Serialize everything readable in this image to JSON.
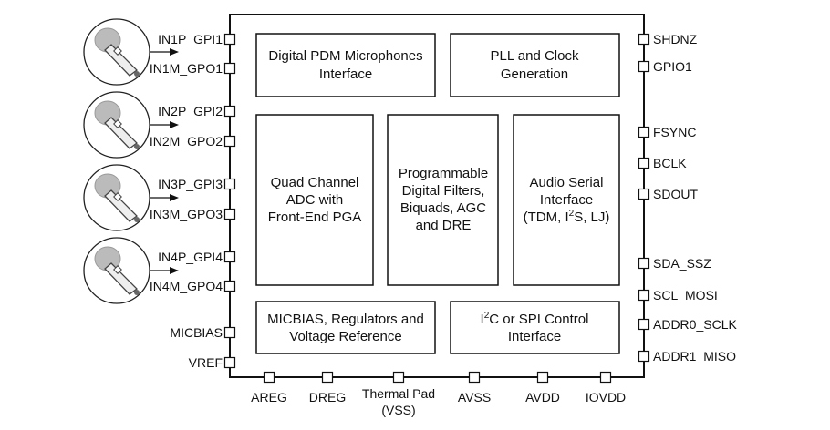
{
  "blocks": {
    "pdm": [
      "Digital PDM Microphones",
      "Interface"
    ],
    "pll": [
      "PLL and Clock",
      "Generation"
    ],
    "adc": [
      "Quad Channel",
      "ADC with",
      "Front-End PGA"
    ],
    "filters": [
      "Programmable",
      "Digital Filters,",
      "Biquads, AGC",
      "and DRE"
    ],
    "asi": [
      "Audio Serial",
      "Interface",
      "(TDM, I",
      "2",
      "S, LJ)"
    ],
    "micbias": [
      "MICBIAS, Regulators and",
      "Voltage Reference"
    ],
    "control": [
      "I",
      "2",
      "C or SPI Control",
      "Interface"
    ]
  },
  "left_pins": [
    "IN1P_GPI1",
    "IN1M_GPO1",
    "IN2P_GPI2",
    "IN2M_GPO2",
    "IN3P_GPI3",
    "IN3M_GPO3",
    "IN4P_GPI4",
    "IN4M_GPO4",
    "MICBIAS",
    "VREF"
  ],
  "right_pins": [
    "SHDNZ",
    "GPIO1",
    "FSYNC",
    "BCLK",
    "SDOUT",
    "SDA_SSZ",
    "SCL_MOSI",
    "ADDR0_SCLK",
    "ADDR1_MISO"
  ],
  "bottom_pins": [
    "AREG",
    "DREG",
    "Thermal Pad",
    "(VSS)",
    "AVSS",
    "AVDD",
    "IOVDD"
  ],
  "icons": [
    "microphone-icon",
    "microphone-icon",
    "microphone-icon",
    "microphone-icon"
  ]
}
